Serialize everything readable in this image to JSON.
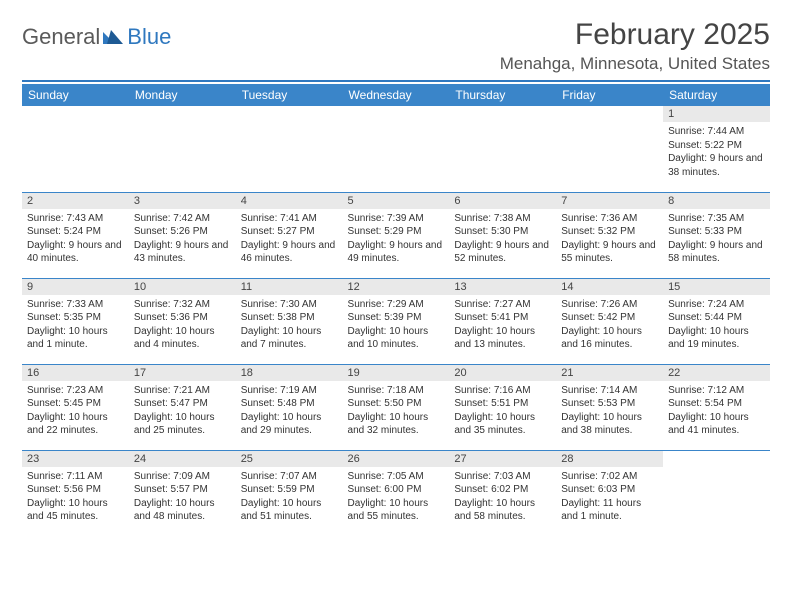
{
  "logo": {
    "text1": "General",
    "text2": "Blue"
  },
  "title": "February 2025",
  "location": "Menahga, Minnesota, United States",
  "day_headers": [
    "Sunday",
    "Monday",
    "Tuesday",
    "Wednesday",
    "Thursday",
    "Friday",
    "Saturday"
  ],
  "colors": {
    "header_bg": "#3a85c9",
    "divider": "#2f78bf",
    "daynum_bg": "#e9e9e9",
    "page_bg": "#ffffff",
    "text": "#333333",
    "logo_blue": "#2f78bf"
  },
  "weeks": [
    [
      null,
      null,
      null,
      null,
      null,
      null,
      {
        "n": "1",
        "sunrise": "7:44 AM",
        "sunset": "5:22 PM",
        "daylight": "Daylight: 9 hours and 38 minutes."
      }
    ],
    [
      {
        "n": "2",
        "sunrise": "7:43 AM",
        "sunset": "5:24 PM",
        "daylight": "Daylight: 9 hours and 40 minutes."
      },
      {
        "n": "3",
        "sunrise": "7:42 AM",
        "sunset": "5:26 PM",
        "daylight": "Daylight: 9 hours and 43 minutes."
      },
      {
        "n": "4",
        "sunrise": "7:41 AM",
        "sunset": "5:27 PM",
        "daylight": "Daylight: 9 hours and 46 minutes."
      },
      {
        "n": "5",
        "sunrise": "7:39 AM",
        "sunset": "5:29 PM",
        "daylight": "Daylight: 9 hours and 49 minutes."
      },
      {
        "n": "6",
        "sunrise": "7:38 AM",
        "sunset": "5:30 PM",
        "daylight": "Daylight: 9 hours and 52 minutes."
      },
      {
        "n": "7",
        "sunrise": "7:36 AM",
        "sunset": "5:32 PM",
        "daylight": "Daylight: 9 hours and 55 minutes."
      },
      {
        "n": "8",
        "sunrise": "7:35 AM",
        "sunset": "5:33 PM",
        "daylight": "Daylight: 9 hours and 58 minutes."
      }
    ],
    [
      {
        "n": "9",
        "sunrise": "7:33 AM",
        "sunset": "5:35 PM",
        "daylight": "Daylight: 10 hours and 1 minute."
      },
      {
        "n": "10",
        "sunrise": "7:32 AM",
        "sunset": "5:36 PM",
        "daylight": "Daylight: 10 hours and 4 minutes."
      },
      {
        "n": "11",
        "sunrise": "7:30 AM",
        "sunset": "5:38 PM",
        "daylight": "Daylight: 10 hours and 7 minutes."
      },
      {
        "n": "12",
        "sunrise": "7:29 AM",
        "sunset": "5:39 PM",
        "daylight": "Daylight: 10 hours and 10 minutes."
      },
      {
        "n": "13",
        "sunrise": "7:27 AM",
        "sunset": "5:41 PM",
        "daylight": "Daylight: 10 hours and 13 minutes."
      },
      {
        "n": "14",
        "sunrise": "7:26 AM",
        "sunset": "5:42 PM",
        "daylight": "Daylight: 10 hours and 16 minutes."
      },
      {
        "n": "15",
        "sunrise": "7:24 AM",
        "sunset": "5:44 PM",
        "daylight": "Daylight: 10 hours and 19 minutes."
      }
    ],
    [
      {
        "n": "16",
        "sunrise": "7:23 AM",
        "sunset": "5:45 PM",
        "daylight": "Daylight: 10 hours and 22 minutes."
      },
      {
        "n": "17",
        "sunrise": "7:21 AM",
        "sunset": "5:47 PM",
        "daylight": "Daylight: 10 hours and 25 minutes."
      },
      {
        "n": "18",
        "sunrise": "7:19 AM",
        "sunset": "5:48 PM",
        "daylight": "Daylight: 10 hours and 29 minutes."
      },
      {
        "n": "19",
        "sunrise": "7:18 AM",
        "sunset": "5:50 PM",
        "daylight": "Daylight: 10 hours and 32 minutes."
      },
      {
        "n": "20",
        "sunrise": "7:16 AM",
        "sunset": "5:51 PM",
        "daylight": "Daylight: 10 hours and 35 minutes."
      },
      {
        "n": "21",
        "sunrise": "7:14 AM",
        "sunset": "5:53 PM",
        "daylight": "Daylight: 10 hours and 38 minutes."
      },
      {
        "n": "22",
        "sunrise": "7:12 AM",
        "sunset": "5:54 PM",
        "daylight": "Daylight: 10 hours and 41 minutes."
      }
    ],
    [
      {
        "n": "23",
        "sunrise": "7:11 AM",
        "sunset": "5:56 PM",
        "daylight": "Daylight: 10 hours and 45 minutes."
      },
      {
        "n": "24",
        "sunrise": "7:09 AM",
        "sunset": "5:57 PM",
        "daylight": "Daylight: 10 hours and 48 minutes."
      },
      {
        "n": "25",
        "sunrise": "7:07 AM",
        "sunset": "5:59 PM",
        "daylight": "Daylight: 10 hours and 51 minutes."
      },
      {
        "n": "26",
        "sunrise": "7:05 AM",
        "sunset": "6:00 PM",
        "daylight": "Daylight: 10 hours and 55 minutes."
      },
      {
        "n": "27",
        "sunrise": "7:03 AM",
        "sunset": "6:02 PM",
        "daylight": "Daylight: 10 hours and 58 minutes."
      },
      {
        "n": "28",
        "sunrise": "7:02 AM",
        "sunset": "6:03 PM",
        "daylight": "Daylight: 11 hours and 1 minute."
      },
      null
    ]
  ]
}
